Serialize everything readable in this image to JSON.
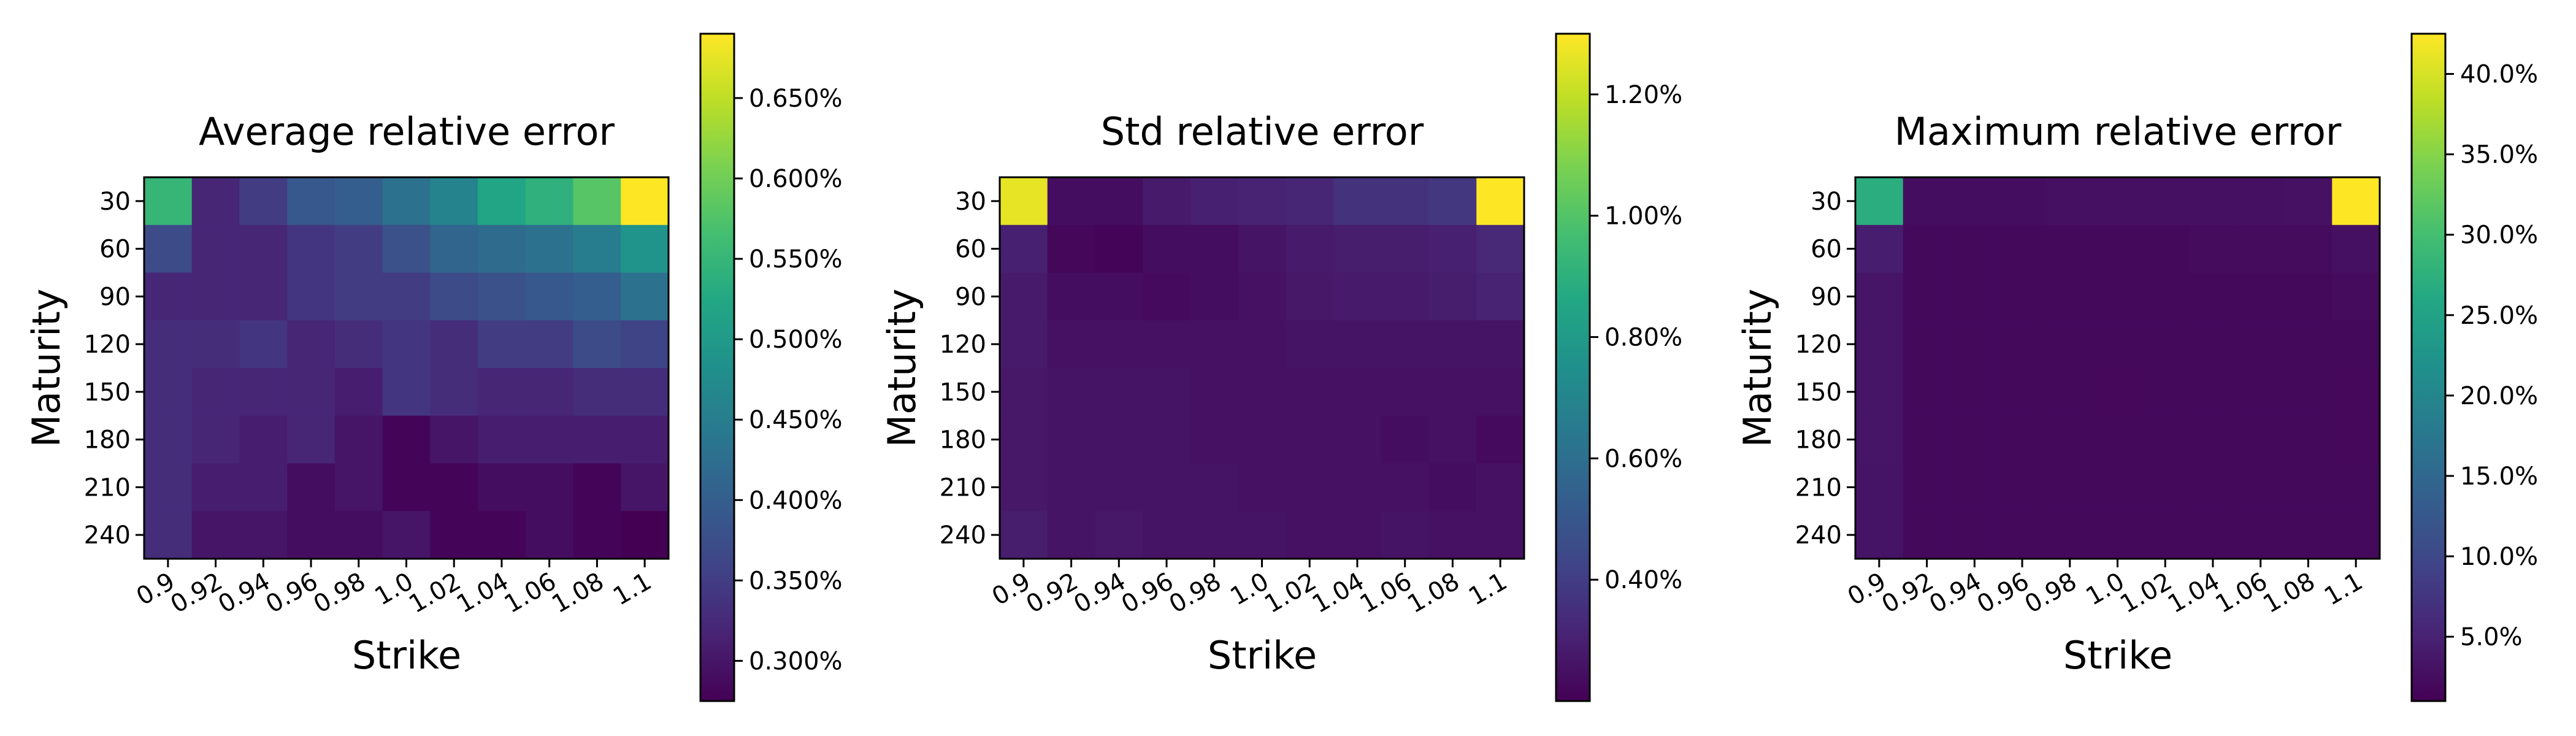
{
  "colormap": "viridis",
  "chart_data": [
    {
      "type": "heatmap",
      "title": "Average relative error",
      "xlabel": "Strike",
      "ylabel": "Maturity",
      "x_categories": [
        "0.9",
        "0.92",
        "0.94",
        "0.96",
        "0.98",
        "1.0",
        "1.02",
        "1.04",
        "1.06",
        "1.08",
        "1.1"
      ],
      "y_categories": [
        "30",
        "60",
        "90",
        "120",
        "150",
        "180",
        "210",
        "240"
      ],
      "value_range": [
        0.275,
        0.69
      ],
      "colorbar_ticks": [
        {
          "value": 0.3,
          "label": "0.300%"
        },
        {
          "value": 0.35,
          "label": "0.350%"
        },
        {
          "value": 0.4,
          "label": "0.400%"
        },
        {
          "value": 0.45,
          "label": "0.450%"
        },
        {
          "value": 0.5,
          "label": "0.500%"
        },
        {
          "value": 0.55,
          "label": "0.550%"
        },
        {
          "value": 0.6,
          "label": "0.600%"
        },
        {
          "value": 0.65,
          "label": "0.650%"
        }
      ],
      "values": [
        [
          0.55,
          0.32,
          0.35,
          0.39,
          0.4,
          0.43,
          0.46,
          0.52,
          0.54,
          0.58,
          0.69
        ],
        [
          0.37,
          0.32,
          0.32,
          0.34,
          0.35,
          0.38,
          0.41,
          0.42,
          0.43,
          0.45,
          0.49
        ],
        [
          0.32,
          0.32,
          0.32,
          0.34,
          0.35,
          0.35,
          0.37,
          0.38,
          0.39,
          0.4,
          0.43
        ],
        [
          0.33,
          0.33,
          0.34,
          0.32,
          0.33,
          0.34,
          0.33,
          0.35,
          0.35,
          0.37,
          0.36
        ],
        [
          0.33,
          0.32,
          0.32,
          0.32,
          0.31,
          0.34,
          0.33,
          0.32,
          0.32,
          0.33,
          0.33
        ],
        [
          0.33,
          0.32,
          0.31,
          0.32,
          0.3,
          0.28,
          0.3,
          0.31,
          0.31,
          0.31,
          0.31
        ],
        [
          0.33,
          0.31,
          0.31,
          0.29,
          0.3,
          0.28,
          0.28,
          0.29,
          0.29,
          0.28,
          0.3
        ],
        [
          0.33,
          0.3,
          0.3,
          0.29,
          0.29,
          0.3,
          0.28,
          0.28,
          0.29,
          0.28,
          0.27
        ]
      ]
    },
    {
      "type": "heatmap",
      "title": "Std relative error",
      "xlabel": "Strike",
      "ylabel": "Maturity",
      "x_categories": [
        "0.9",
        "0.92",
        "0.94",
        "0.96",
        "0.98",
        "1.0",
        "1.02",
        "1.04",
        "1.06",
        "1.08",
        "1.1"
      ],
      "y_categories": [
        "30",
        "60",
        "90",
        "120",
        "150",
        "180",
        "210",
        "240"
      ],
      "value_range": [
        0.2,
        1.3
      ],
      "colorbar_ticks": [
        {
          "value": 0.4,
          "label": "0.40%"
        },
        {
          "value": 0.6,
          "label": "0.60%"
        },
        {
          "value": 0.8,
          "label": "0.80%"
        },
        {
          "value": 1.0,
          "label": "1.00%"
        },
        {
          "value": 1.2,
          "label": "1.20%"
        }
      ],
      "values": [
        [
          1.26,
          0.24,
          0.24,
          0.28,
          0.3,
          0.31,
          0.32,
          0.36,
          0.36,
          0.38,
          1.3
        ],
        [
          0.3,
          0.22,
          0.21,
          0.24,
          0.24,
          0.26,
          0.28,
          0.29,
          0.29,
          0.3,
          0.33
        ],
        [
          0.28,
          0.24,
          0.24,
          0.23,
          0.24,
          0.25,
          0.27,
          0.28,
          0.28,
          0.29,
          0.31
        ],
        [
          0.28,
          0.25,
          0.25,
          0.25,
          0.25,
          0.25,
          0.26,
          0.26,
          0.26,
          0.26,
          0.26
        ],
        [
          0.27,
          0.26,
          0.26,
          0.26,
          0.25,
          0.25,
          0.25,
          0.25,
          0.25,
          0.25,
          0.25
        ],
        [
          0.27,
          0.26,
          0.26,
          0.26,
          0.25,
          0.25,
          0.25,
          0.25,
          0.24,
          0.25,
          0.23
        ],
        [
          0.27,
          0.26,
          0.26,
          0.26,
          0.26,
          0.25,
          0.25,
          0.25,
          0.25,
          0.24,
          0.25
        ],
        [
          0.29,
          0.26,
          0.27,
          0.26,
          0.26,
          0.26,
          0.25,
          0.25,
          0.26,
          0.25,
          0.25
        ]
      ]
    },
    {
      "type": "heatmap",
      "title": "Maximum relative error",
      "xlabel": "Strike",
      "ylabel": "Maturity",
      "x_categories": [
        "0.9",
        "0.92",
        "0.94",
        "0.96",
        "0.98",
        "1.0",
        "1.02",
        "1.04",
        "1.06",
        "1.08",
        "1.1"
      ],
      "y_categories": [
        "30",
        "60",
        "90",
        "120",
        "150",
        "180",
        "210",
        "240"
      ],
      "value_range": [
        1.0,
        42.5
      ],
      "colorbar_ticks": [
        {
          "value": 5,
          "label": "5.0%"
        },
        {
          "value": 10,
          "label": "10.0%"
        },
        {
          "value": 15,
          "label": "15.0%"
        },
        {
          "value": 20,
          "label": "20.0%"
        },
        {
          "value": 25,
          "label": "25.0%"
        },
        {
          "value": 30,
          "label": "30.0%"
        },
        {
          "value": 35,
          "label": "35.0%"
        },
        {
          "value": 40,
          "label": "40.0%"
        }
      ],
      "values": [
        [
          27.0,
          2.5,
          2.5,
          2.5,
          2.8,
          2.8,
          2.8,
          2.8,
          2.8,
          3.0,
          42.5
        ],
        [
          4.5,
          2.0,
          2.0,
          2.0,
          2.0,
          2.0,
          2.0,
          2.3,
          2.3,
          2.3,
          2.8
        ],
        [
          3.5,
          2.0,
          2.0,
          2.0,
          2.0,
          2.0,
          2.0,
          2.0,
          2.0,
          2.0,
          2.3
        ],
        [
          3.5,
          2.0,
          2.0,
          2.0,
          2.0,
          2.0,
          2.0,
          2.0,
          2.0,
          2.0,
          2.0
        ],
        [
          3.5,
          2.0,
          2.0,
          2.0,
          2.0,
          1.8,
          2.0,
          2.0,
          2.0,
          2.0,
          1.8
        ],
        [
          3.5,
          2.0,
          2.0,
          2.0,
          2.0,
          2.0,
          2.0,
          2.0,
          2.0,
          2.0,
          1.8
        ],
        [
          3.3,
          2.0,
          2.0,
          2.0,
          2.0,
          2.0,
          2.0,
          2.0,
          2.0,
          2.0,
          2.0
        ],
        [
          3.3,
          2.0,
          2.0,
          2.0,
          2.0,
          2.0,
          2.0,
          2.0,
          2.0,
          2.0,
          2.0
        ]
      ]
    }
  ]
}
